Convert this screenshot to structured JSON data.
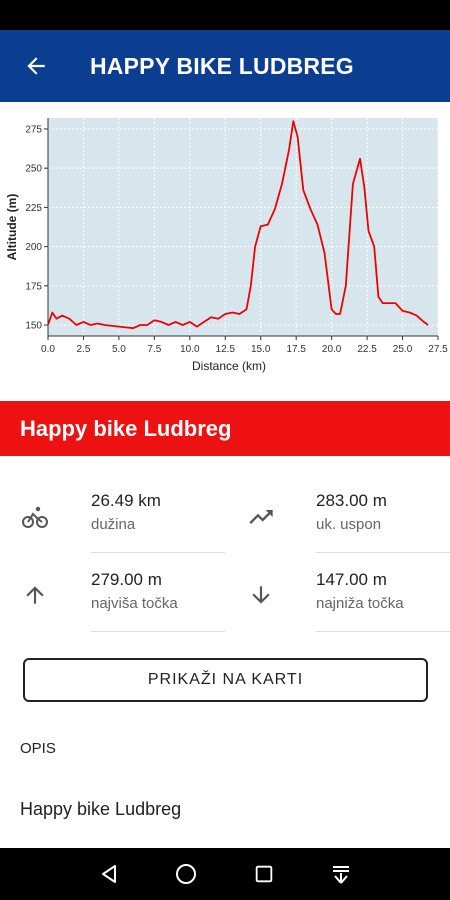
{
  "app_bar": {
    "title": "HAPPY BIKE LUDBREG",
    "back_icon": "arrow-left-icon"
  },
  "chart_data": {
    "type": "line",
    "xlabel": "Distance (km)",
    "ylabel": "Altitude (m)",
    "xlim": [
      0,
      27.5
    ],
    "ylim": [
      143,
      282
    ],
    "xticks": [
      "0.0",
      "2.5",
      "5.0",
      "7.5",
      "10.0",
      "12.5",
      "15.0",
      "17.5",
      "20.0",
      "22.5",
      "25.0",
      "27.5"
    ],
    "yticks": [
      "150",
      "175",
      "200",
      "225",
      "250",
      "275"
    ],
    "grid": true,
    "line_color": "#ee0000",
    "background": "#d6e6ec",
    "series": [
      {
        "x": [
          0,
          0.3,
          0.6,
          1.0,
          1.5,
          2.0,
          2.5,
          3.0,
          3.5,
          4.0,
          5.0,
          6.0,
          6.5,
          7.0,
          7.5,
          8.0,
          8.5,
          9.0,
          9.5,
          10.0,
          10.5,
          11.0,
          11.5,
          12.0,
          12.5,
          13.0,
          13.5,
          14.0,
          14.3,
          14.6,
          15.0,
          15.5,
          16.0,
          16.5,
          17.0,
          17.3,
          17.6,
          18.0,
          18.5,
          19.0,
          19.5,
          20.0,
          20.3,
          20.6,
          21.0,
          21.5,
          22.0,
          22.3,
          22.6,
          23.0,
          23.3,
          23.6,
          24.0,
          24.5,
          25.0,
          25.5,
          26.0,
          26.5,
          26.8
        ],
        "y": [
          150,
          158,
          154,
          156,
          154,
          150,
          152,
          150,
          151,
          150,
          149,
          148,
          150,
          150,
          153,
          152,
          150,
          152,
          150,
          152,
          149,
          152,
          155,
          154,
          157,
          158,
          157,
          160,
          175,
          200,
          213,
          214,
          224,
          240,
          262,
          280,
          270,
          236,
          224,
          214,
          196,
          160,
          157,
          157,
          175,
          240,
          256,
          238,
          210,
          200,
          168,
          164,
          164,
          164,
          159,
          158,
          156,
          152,
          150
        ]
      }
    ]
  },
  "route": {
    "name": "Happy bike Ludbreg"
  },
  "stats": [
    {
      "icon": "bike-icon",
      "value": "26.49 km",
      "label": "dužina"
    },
    {
      "icon": "trending-up-icon",
      "value": "283.00 m",
      "label": "uk. uspon"
    },
    {
      "icon": "arrow-up-icon",
      "value": "279.00 m",
      "label": "najviša točka"
    },
    {
      "icon": "arrow-down-icon",
      "value": "147.00 m",
      "label": "najniža točka"
    }
  ],
  "actions": {
    "map_button": "PRIKAŽI NA KARTI"
  },
  "description": {
    "section_title": "OPIS",
    "text": "Happy bike Ludbreg"
  },
  "nav": {
    "icons": [
      "back-triangle-icon",
      "home-circle-icon",
      "recents-square-icon",
      "menu-down-icon"
    ]
  }
}
